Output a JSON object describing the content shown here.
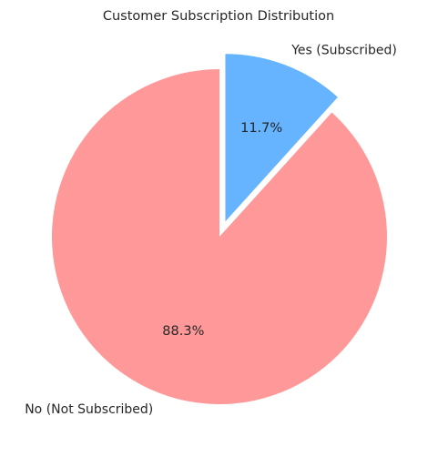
{
  "chart_data": {
    "type": "pie",
    "title": "Customer Subscription Distribution",
    "slices": [
      {
        "label": "No (Not Subscribed)",
        "value": 88.3,
        "pct_label": "88.3%",
        "color": "#ff9999",
        "explode": false
      },
      {
        "label": "Yes (Subscribed)",
        "value": 11.7,
        "pct_label": "11.7%",
        "color": "#66b3ff",
        "explode": true
      }
    ],
    "start_angle": "90deg (top)",
    "direction": "counterclockwise for No, Yes slice clockwise from top",
    "legend": "none"
  }
}
